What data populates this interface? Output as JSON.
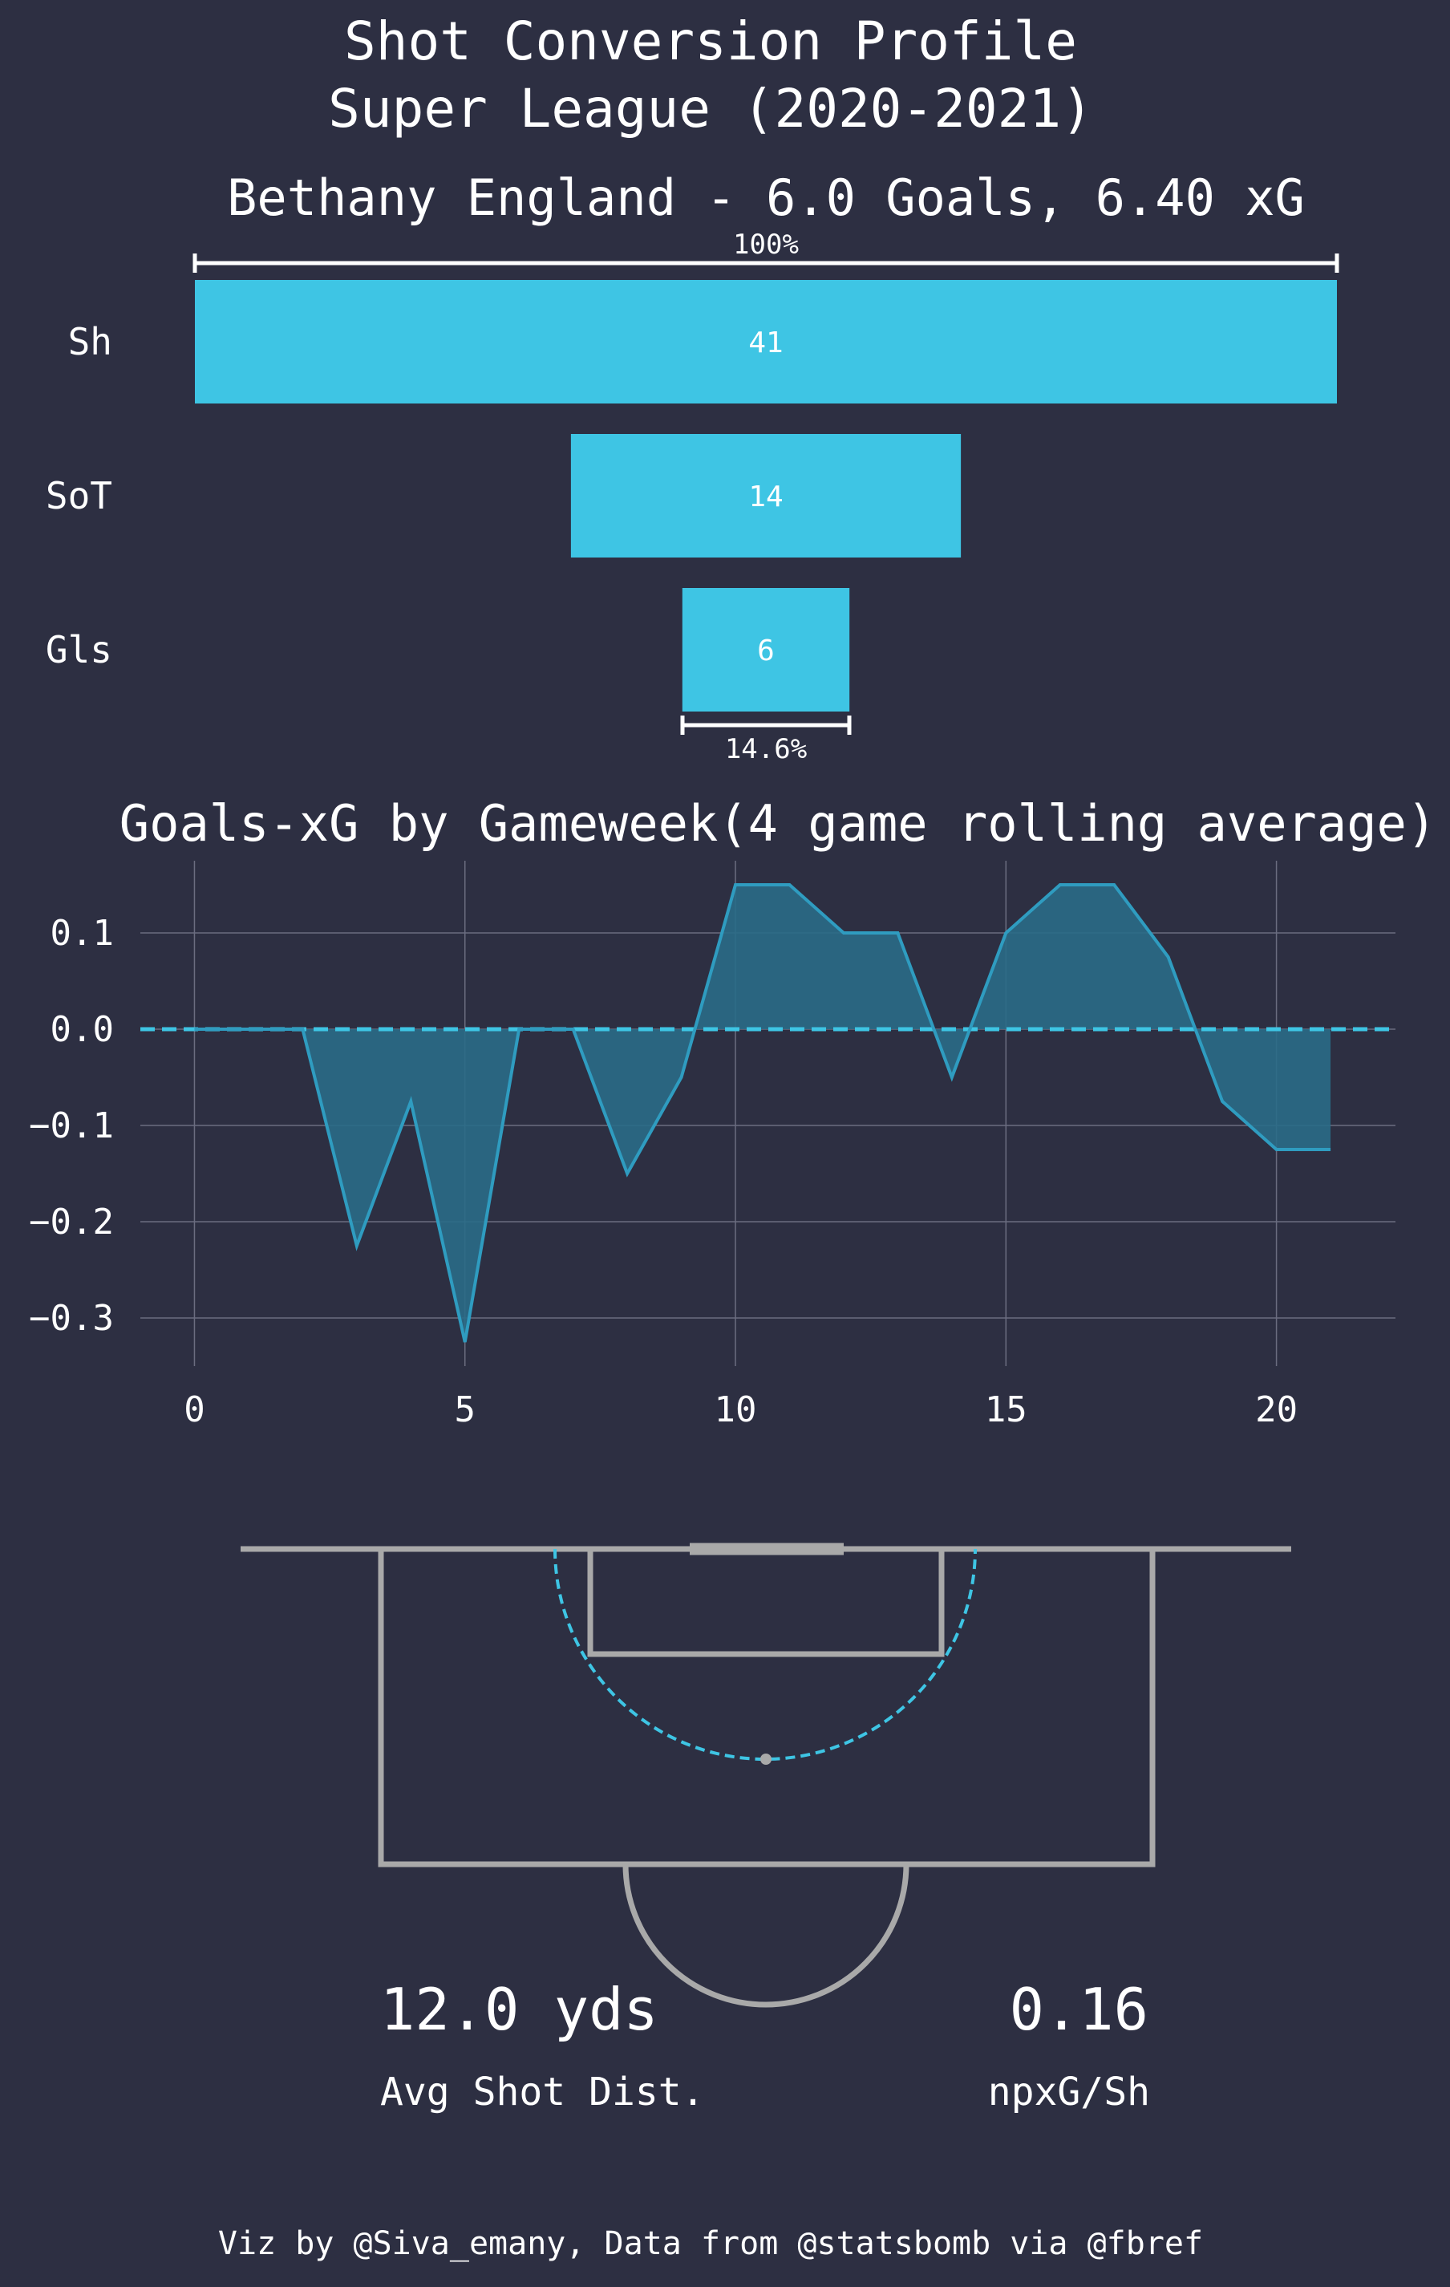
{
  "header": {
    "title_line1": "Shot Conversion Profile",
    "title_line2": "Super League (2020-2021)"
  },
  "colors": {
    "background": "#2d2f42",
    "accent": "#3ec5e4",
    "area_fill": "#2a6b87",
    "pitch_lines": "#a9a9a9",
    "text": "#ffffff",
    "grid": "#6b6d80"
  },
  "chart_data": [
    {
      "type": "bar",
      "orientation": "horizontal-funnel",
      "title": "Bethany England - 6.0 Goals, 6.40 xG",
      "categories": [
        "Sh",
        "SoT",
        "Gls"
      ],
      "values": [
        41,
        14,
        6
      ],
      "annotations": {
        "top_bracket": "100%",
        "bottom_bracket": "14.6%"
      }
    },
    {
      "type": "area",
      "title": "Goals-xG by Gameweek(4 game rolling average)",
      "x": [
        0,
        1,
        2,
        3,
        4,
        5,
        6,
        7,
        8,
        9,
        10,
        11,
        12,
        13,
        14,
        15,
        16,
        17,
        18,
        19,
        20,
        21
      ],
      "values": [
        0,
        0,
        0,
        -0.225,
        -0.075,
        -0.325,
        0,
        0,
        -0.15,
        -0.05,
        0.15,
        0.15,
        0.1,
        0.1,
        -0.05,
        0.1,
        0.15,
        0.15,
        0.075,
        -0.075,
        -0.125,
        -0.125
      ],
      "xlim": [
        -1,
        22.2
      ],
      "ylim": [
        -0.35,
        0.175
      ],
      "xticks": [
        0,
        5,
        10,
        15,
        20
      ],
      "yticks": [
        0.1,
        0.0,
        -0.1,
        -0.2,
        -0.3
      ],
      "ytick_labels": [
        "0.1",
        "0.0",
        "−0.1",
        "−0.2",
        "−0.3"
      ],
      "baseline": 0,
      "grid": true
    }
  ],
  "pitch": {
    "avg_shot_dist_value": "12.0 yds",
    "avg_shot_dist_label": "Avg Shot Dist.",
    "npxg_value": "0.16",
    "npxg_label": "npxG/Sh"
  },
  "footer": {
    "credit": "Viz by @Siva_emany, Data from @statsbomb via @fbref"
  }
}
